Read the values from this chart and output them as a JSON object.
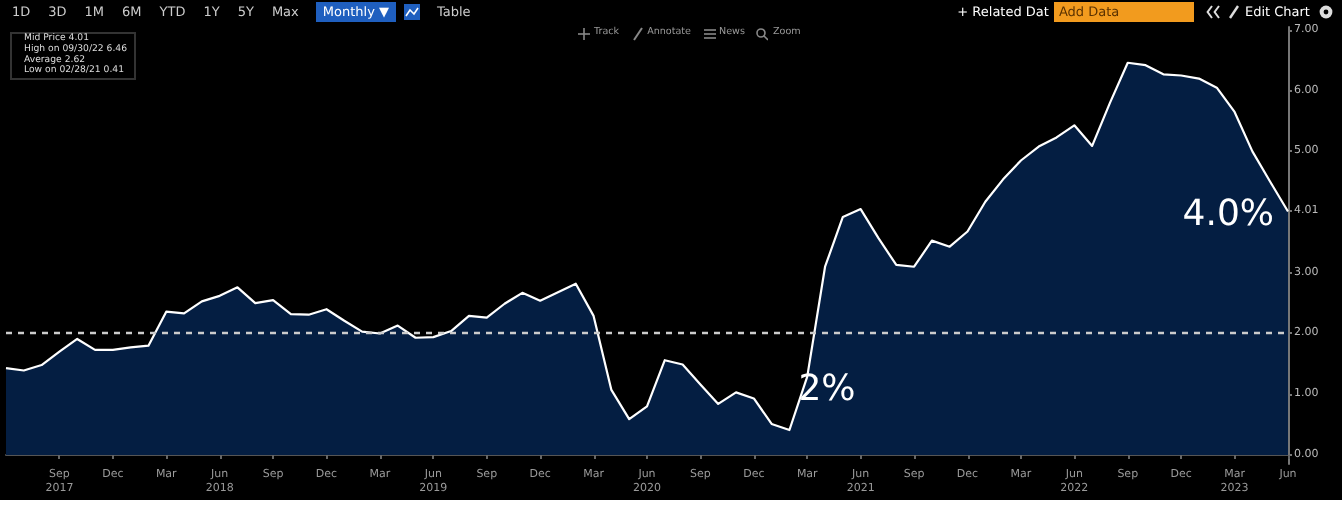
{
  "chart_data": {
    "type": "area",
    "categories": [
      null,
      null,
      null,
      "Sep\n2017",
      null,
      null,
      "Dec",
      null,
      null,
      "Mar",
      null,
      null,
      "Jun\n2018",
      null,
      null,
      "Sep",
      null,
      null,
      "Dec",
      null,
      null,
      "Mar",
      null,
      null,
      "Jun\n2019",
      null,
      null,
      "Sep",
      null,
      null,
      "Dec",
      null,
      null,
      "Mar",
      null,
      null,
      "Jun\n2020",
      null,
      null,
      "Sep",
      null,
      null,
      "Dec",
      null,
      null,
      "Mar",
      null,
      null,
      "Jun\n2021",
      null,
      null,
      "Sep",
      null,
      null,
      "Dec",
      null,
      null,
      "Mar",
      null,
      null,
      "Jun\n2022",
      null,
      null,
      "Sep",
      null,
      null,
      "Dec",
      null,
      null,
      "Mar\n2023",
      null,
      null,
      "Jun"
    ],
    "series": [
      {
        "color": "#041e42",
        "values": [
          1.43,
          1.39,
          1.48,
          1.7,
          1.91,
          1.73,
          1.73,
          1.77,
          1.8,
          2.36,
          2.33,
          2.53,
          2.62,
          2.76,
          2.5,
          2.55,
          2.32,
          2.31,
          2.4,
          2.21,
          2.03,
          2.0,
          2.13,
          1.93,
          1.94,
          2.04,
          2.29,
          2.26,
          2.49,
          2.67,
          2.54,
          2.68,
          2.82,
          2.29,
          1.07,
          0.59,
          0.8,
          1.56,
          1.49,
          1.16,
          0.84,
          1.03,
          0.93,
          0.51,
          0.41,
          1.29,
          3.1,
          3.92,
          4.05,
          3.57,
          3.13,
          3.1,
          3.53,
          3.43,
          3.68,
          4.17,
          4.54,
          4.85,
          5.08,
          5.23,
          5.43,
          5.09,
          5.8,
          6.46,
          6.42,
          6.27,
          6.25,
          6.2,
          6.05,
          5.65,
          5.0,
          4.5,
          4.01
        ]
      }
    ],
    "ylim": [
      -0.15,
      7.05
    ],
    "yticks": [
      {
        "value": 0,
        "label": "0.00"
      },
      {
        "value": 1,
        "label": "1.00"
      },
      {
        "value": 2,
        "label": "2.00"
      },
      {
        "value": 3,
        "label": "3.00"
      },
      {
        "value": 4.01,
        "label": "4.01"
      },
      {
        "value": 5,
        "label": "5.00"
      },
      {
        "value": 6,
        "label": "6.00"
      },
      {
        "value": 7,
        "label": "7.00"
      }
    ],
    "ref_lines": [
      {
        "axis": "y",
        "value": 2,
        "label": "2%",
        "color": "#cccccc",
        "line_style": "dashed"
      }
    ],
    "annotations": [
      "Mid Price 4.01",
      "High on 09/30/22 6.46",
      "Average 2.62",
      "Low on 02/28/21 0.41",
      "4.0%",
      "1D",
      "3D",
      "1M",
      "6M",
      "YTD",
      "1Y",
      "5Y",
      "Max",
      "Monthly ▼",
      "Table",
      "Track",
      "Annotate",
      "News",
      "Zoom",
      "+ Related Dat",
      "Add Data",
      "Edit Chart"
    ]
  }
}
